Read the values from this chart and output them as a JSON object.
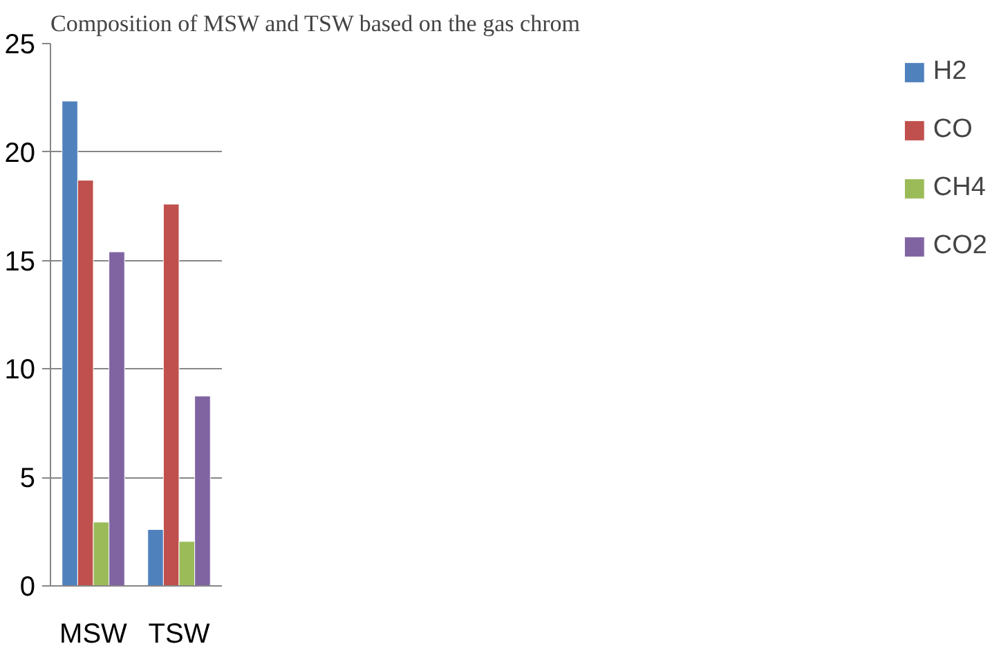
{
  "chart_data": {
    "type": "bar",
    "title": "Composition of MSW and TSW based on the gas chrom",
    "categories": [
      "MSW",
      "TSW"
    ],
    "series": [
      {
        "name": "H2",
        "color": "#4f81bd",
        "values": [
          22.35,
          2.6
        ]
      },
      {
        "name": "CO",
        "color": "#c0504d",
        "values": [
          18.7,
          17.6
        ]
      },
      {
        "name": "CH4",
        "color": "#9bbb59",
        "values": [
          2.94,
          2.05
        ]
      },
      {
        "name": "CO2",
        "color": "#8064a2",
        "values": [
          15.4,
          8.75
        ]
      }
    ],
    "ylim": [
      0,
      25
    ],
    "yticks": [
      0,
      5,
      10,
      15,
      20,
      25
    ],
    "grid": "y",
    "legend": "right"
  }
}
